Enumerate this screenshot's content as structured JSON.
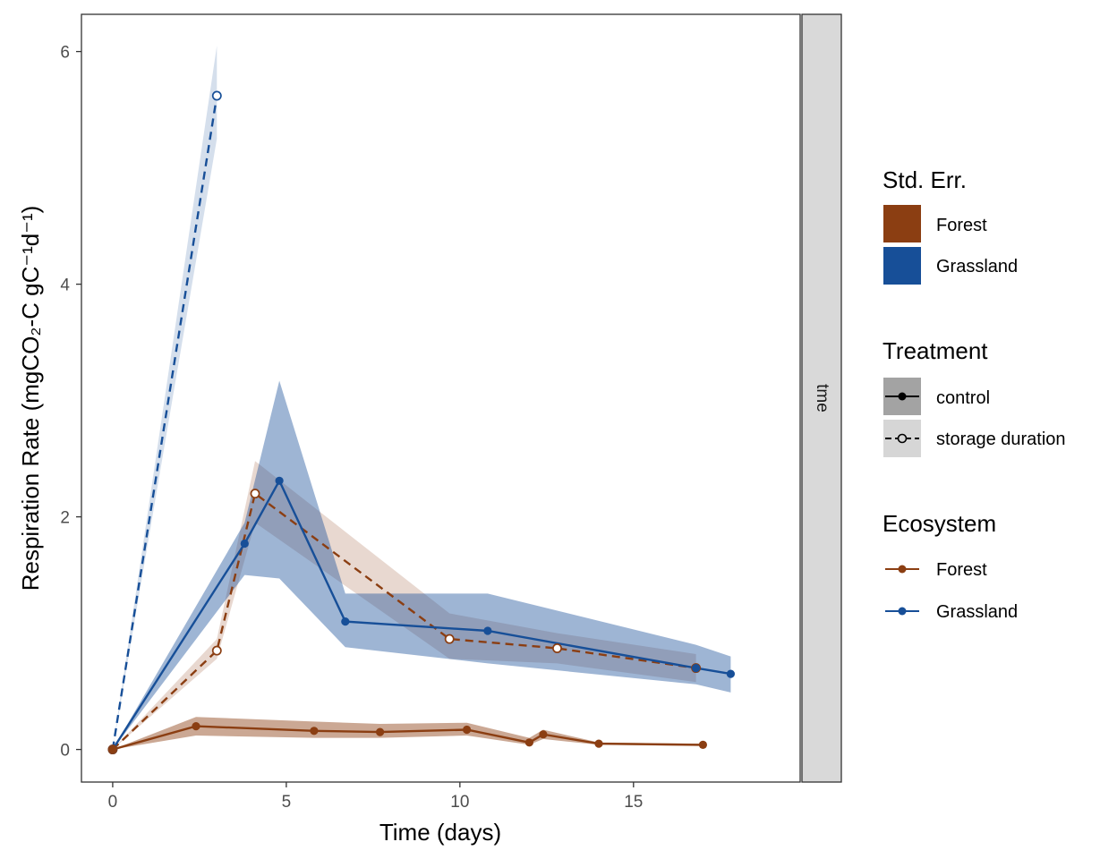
{
  "chart_data": {
    "type": "line",
    "xlabel": "Time (days)",
    "ylabel": "Respiration Rate (mgCO₂-C gC⁻¹d⁻¹)",
    "xlim": [
      -0.9,
      19.8
    ],
    "ylim": [
      -0.28,
      6.32
    ],
    "xticks": [
      0,
      5,
      10,
      15
    ],
    "yticks": [
      0,
      2,
      4,
      6
    ],
    "grid": false,
    "facet_strip": "tme",
    "series": [
      {
        "ecosystem": "Grassland",
        "treatment": "storage duration",
        "color": "#174f98",
        "linestyle": "dashed",
        "marker": "open-circle",
        "x": [
          0,
          3.0
        ],
        "y": [
          0,
          5.62
        ],
        "lower": [
          0,
          5.25
        ],
        "upper": [
          0,
          6.05
        ]
      },
      {
        "ecosystem": "Forest",
        "treatment": "storage duration",
        "color": "#8b3e12",
        "linestyle": "dashed",
        "marker": "open-circle",
        "x": [
          0,
          3.0,
          4.1,
          9.7,
          12.8,
          16.8
        ],
        "y": [
          0,
          0.85,
          2.2,
          0.95,
          0.87,
          0.7
        ],
        "lower": [
          0,
          0.78,
          1.95,
          0.78,
          0.74,
          0.58
        ],
        "upper": [
          0,
          0.95,
          2.48,
          1.17,
          1.0,
          0.82
        ]
      },
      {
        "ecosystem": "Grassland",
        "treatment": "control",
        "color": "#174f98",
        "linestyle": "solid",
        "marker": "filled-circle",
        "x": [
          0,
          3.8,
          4.8,
          6.7,
          10.8,
          16.8,
          17.8
        ],
        "y": [
          0,
          1.77,
          2.31,
          1.1,
          1.02,
          0.7,
          0.65
        ],
        "lower": [
          0,
          1.5,
          1.47,
          0.88,
          0.74,
          0.56,
          0.49
        ],
        "upper": [
          0,
          1.95,
          3.17,
          1.34,
          1.34,
          0.9,
          0.8
        ]
      },
      {
        "ecosystem": "Forest",
        "treatment": "control",
        "color": "#8b3e12",
        "linestyle": "solid",
        "marker": "filled-circle",
        "x": [
          0,
          2.4,
          5.8,
          7.7,
          10.2,
          12.0,
          12.4,
          14.0,
          17.0
        ],
        "y": [
          0,
          0.2,
          0.16,
          0.15,
          0.17,
          0.06,
          0.13,
          0.05,
          0.04
        ],
        "lower": [
          0,
          0.12,
          0.1,
          0.1,
          0.12,
          0.04,
          0.09,
          0.04,
          0.03
        ],
        "upper": [
          0,
          0.28,
          0.24,
          0.22,
          0.23,
          0.1,
          0.17,
          0.06,
          0.05
        ]
      }
    ]
  },
  "legend": {
    "stderr": {
      "title": "Std. Err.",
      "items": [
        {
          "label": "Forest",
          "color": "#8b3e12"
        },
        {
          "label": "Grassland",
          "color": "#174f98"
        }
      ]
    },
    "treatment": {
      "title": "Treatment",
      "items": [
        {
          "label": "control",
          "marker": "filled-circle",
          "linestyle": "solid",
          "key_fill": "#a3a3a3"
        },
        {
          "label": "storage duration",
          "marker": "open-circle",
          "linestyle": "dashed",
          "key_fill": "#d6d6d6"
        }
      ]
    },
    "ecosystem": {
      "title": "Ecosystem",
      "items": [
        {
          "label": "Forest",
          "color": "#8b3e12"
        },
        {
          "label": "Grassland",
          "color": "#174f98"
        }
      ]
    }
  }
}
